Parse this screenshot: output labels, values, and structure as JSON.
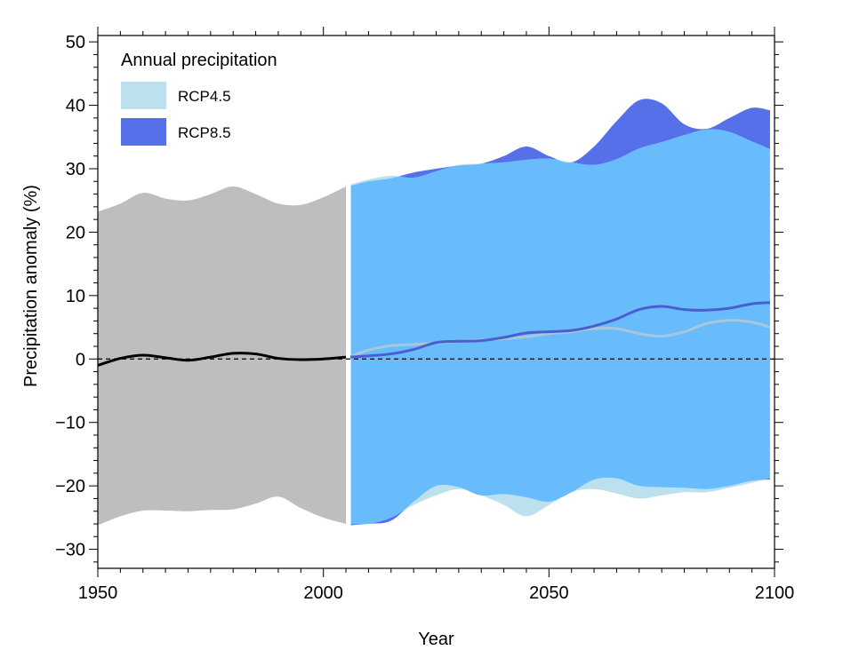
{
  "chart_data": {
    "type": "area",
    "xlabel": "Year",
    "ylabel": "Precipitation anomaly (%)",
    "xlim": [
      1950,
      2100
    ],
    "ylim": [
      -33,
      51
    ],
    "xticks": [
      1950,
      2000,
      2050,
      2100
    ],
    "yticks": [
      -30,
      -20,
      -10,
      0,
      10,
      20,
      30,
      40,
      50
    ],
    "x_minor_step": 5,
    "y_minor_step": 2,
    "zero_line": "dashed",
    "grid": false,
    "legend": {
      "title": "Annual precipitation",
      "position": "top-left",
      "entries": [
        {
          "label": "RCP4.5",
          "color": "#bde0ef"
        },
        {
          "label": "RCP8.5",
          "color": "#5570e8"
        }
      ]
    },
    "colors": {
      "historical_band": "#bebebe",
      "historical_mean": "#000000",
      "overlap_band": "#69bcfb",
      "rcp45_band": "#bde0ef",
      "rcp85_band": "#5570e8",
      "rcp45_mean": "#a9c7da",
      "rcp85_mean": "#4a5fcf"
    },
    "historical": {
      "x": [
        1950,
        1955,
        1960,
        1965,
        1970,
        1975,
        1980,
        1985,
        1990,
        1995,
        2000,
        2005
      ],
      "upper": [
        23.2,
        24.5,
        26.2,
        25.3,
        25.0,
        26.0,
        27.2,
        26.0,
        24.5,
        24.3,
        25.5,
        27.2
      ],
      "lower": [
        -26.2,
        -24.8,
        -23.9,
        -23.9,
        -24.0,
        -23.8,
        -23.7,
        -22.8,
        -21.7,
        -23.5,
        -25.0,
        -26.0
      ],
      "mean": [
        -1.0,
        0.1,
        0.6,
        0.2,
        -0.2,
        0.3,
        0.9,
        0.8,
        0.1,
        -0.1,
        0.0,
        0.3
      ]
    },
    "rcp45": {
      "x": [
        2006,
        2010,
        2015,
        2020,
        2025,
        2030,
        2035,
        2040,
        2045,
        2050,
        2055,
        2060,
        2065,
        2070,
        2075,
        2080,
        2085,
        2090,
        2095,
        2099
      ],
      "upper": [
        27.5,
        28.3,
        28.9,
        28.6,
        29.6,
        30.6,
        30.8,
        31.0,
        31.4,
        31.6,
        31.0,
        30.6,
        31.5,
        33.2,
        34.2,
        35.3,
        36.2,
        35.8,
        34.3,
        33.1
      ],
      "lower": [
        -26.0,
        -26.0,
        -25.0,
        -23.0,
        -21.5,
        -20.5,
        -21.5,
        -23.0,
        -24.8,
        -23.0,
        -21.0,
        -20.5,
        -21.2,
        -22.0,
        -21.5,
        -21.0,
        -21.0,
        -20.3,
        -19.5,
        -18.8
      ],
      "mean": [
        0.4,
        1.4,
        2.1,
        2.3,
        2.5,
        2.8,
        3.0,
        3.2,
        3.5,
        4.0,
        4.3,
        4.8,
        4.8,
        4.0,
        3.6,
        4.3,
        5.6,
        6.1,
        5.8,
        5.0
      ]
    },
    "rcp85": {
      "x": [
        2006,
        2010,
        2015,
        2020,
        2025,
        2030,
        2035,
        2040,
        2045,
        2050,
        2055,
        2060,
        2065,
        2070,
        2075,
        2080,
        2085,
        2090,
        2095,
        2099
      ],
      "upper": [
        27.3,
        28.0,
        28.5,
        29.4,
        30.0,
        30.5,
        30.8,
        32.0,
        33.5,
        32.0,
        31.0,
        33.5,
        37.5,
        40.8,
        40.3,
        37.0,
        36.3,
        38.0,
        39.6,
        39.2
      ],
      "lower": [
        -26.2,
        -26.0,
        -25.5,
        -22.5,
        -20.0,
        -20.2,
        -21.5,
        -21.3,
        -21.8,
        -22.5,
        -21.0,
        -19.0,
        -18.8,
        -20.0,
        -20.2,
        -20.3,
        -20.5,
        -20.0,
        -19.2,
        -19.0
      ],
      "mean": [
        0.3,
        0.5,
        0.8,
        1.5,
        2.6,
        2.8,
        2.9,
        3.4,
        4.1,
        4.3,
        4.5,
        5.2,
        6.3,
        7.8,
        8.3,
        7.8,
        7.7,
        8.0,
        8.7,
        8.9
      ]
    }
  }
}
